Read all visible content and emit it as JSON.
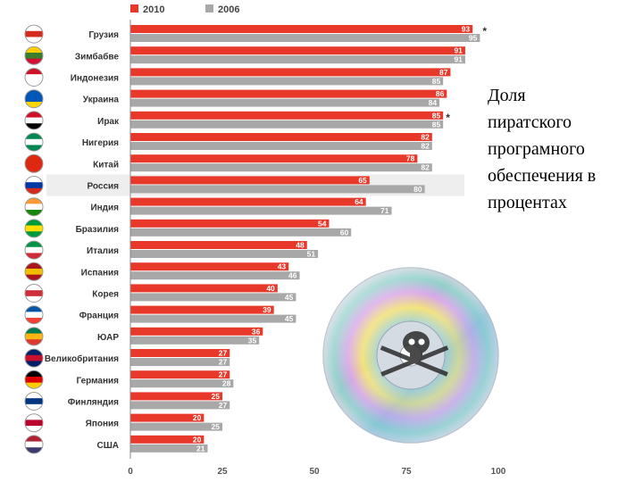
{
  "side_text": {
    "lines": [
      "Доля",
      "пиратского",
      "програмного",
      "обеспечения в",
      "процентах"
    ]
  },
  "chart_data": {
    "type": "bar",
    "orientation": "horizontal",
    "categories": [
      "Грузия",
      "Зимбабве",
      "Индонезия",
      "Украина",
      "Ирак",
      "Нигерия",
      "Китай",
      "Россия",
      "Индия",
      "Бразилия",
      "Италия",
      "Испания",
      "Корея",
      "Франция",
      "ЮАР",
      "Великобритания",
      "Германия",
      "Финляндия",
      "Япония",
      "США"
    ],
    "series": [
      {
        "name": "2010",
        "color": "#e8382a",
        "values": [
          93,
          91,
          87,
          86,
          85,
          82,
          78,
          65,
          64,
          54,
          48,
          43,
          40,
          39,
          36,
          27,
          27,
          25,
          20,
          20
        ]
      },
      {
        "name": "2006",
        "color": "#a8a8a8",
        "values": [
          95,
          91,
          85,
          84,
          85,
          82,
          82,
          80,
          71,
          60,
          51,
          46,
          45,
          45,
          35,
          27,
          28,
          27,
          25,
          21
        ]
      }
    ],
    "annotations": [
      {
        "category": "Грузия",
        "text": "*"
      },
      {
        "category": "Ирак",
        "text": "*"
      }
    ],
    "highlighted_category": "Россия",
    "xlim": [
      0,
      100
    ],
    "xticks": [
      "0",
      "25",
      "50",
      "75",
      "100"
    ],
    "grid": false,
    "legend_position": "top-left",
    "flag_icons": [
      "georgia-flag-icon",
      "zimbabwe-flag-icon",
      "indonesia-flag-icon",
      "ukraine-flag-icon",
      "iraq-flag-icon",
      "nigeria-flag-icon",
      "china-flag-icon",
      "russia-flag-icon",
      "india-flag-icon",
      "brazil-flag-icon",
      "italy-flag-icon",
      "spain-flag-icon",
      "korea-flag-icon",
      "france-flag-icon",
      "south-africa-flag-icon",
      "uk-flag-icon",
      "germany-flag-icon",
      "finland-flag-icon",
      "japan-flag-icon",
      "usa-flag-icon"
    ],
    "decoration_icon": "cd-disc-skull-icon"
  }
}
